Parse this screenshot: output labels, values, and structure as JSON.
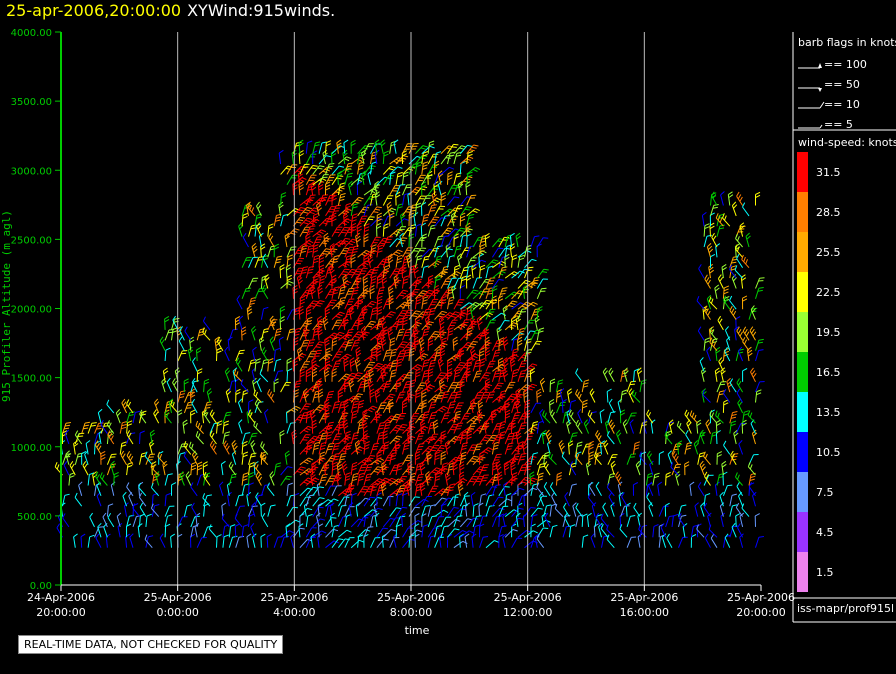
{
  "title": {
    "date": "25-apr-2006,20:00:00",
    "name": "XYWind:915winds."
  },
  "footer_note": "REAL-TIME DATA, NOT CHECKED FOR QUALITY",
  "source_label": "iss-mapr/prof915l",
  "colors": {
    "axis": "#00cc00",
    "grid": "#bbbbbb",
    "title_date": "#ffff00",
    "scale": [
      "#ee82ee",
      "#9933ff",
      "#6699ff",
      "#0000ff",
      "#00ffff",
      "#00cc00",
      "#99ff33",
      "#ffff00",
      "#ffaa00",
      "#ff7f00",
      "#ff0000"
    ]
  },
  "legend": {
    "barb_title": "barb flags in knots",
    "barb_entries": [
      "== 100",
      "== 50",
      "== 10",
      "== 5"
    ],
    "speed_title": "wind-speed: knots",
    "speed_levels": [
      "31.5",
      "28.5",
      "25.5",
      "22.5",
      "19.5",
      "16.5",
      "13.5",
      "10.5",
      "7.5",
      "4.5",
      "1.5"
    ]
  },
  "chart_data": {
    "type": "wind-barb time-height",
    "xlabel": "time",
    "ylabel": "915 Profiler Altitude (m agl)",
    "x_ticks": [
      {
        "date": "24-Apr-2006",
        "time": "20:00:00",
        "hours": 0
      },
      {
        "date": "25-Apr-2006",
        "time": "0:00:00",
        "hours": 4
      },
      {
        "date": "25-Apr-2006",
        "time": "4:00:00",
        "hours": 8
      },
      {
        "date": "25-Apr-2006",
        "time": "8:00:00",
        "hours": 12
      },
      {
        "date": "25-Apr-2006",
        "time": "12:00:00",
        "hours": 16
      },
      {
        "date": "25-Apr-2006",
        "time": "16:00:00",
        "hours": 20
      },
      {
        "date": "25-Apr-2006",
        "time": "20:00:00",
        "hours": 24
      }
    ],
    "y_ticks": [
      "0.00",
      "500.00",
      "1000.00",
      "1500.00",
      "2000.00",
      "2500.00",
      "3000.00",
      "3500.00",
      "4000.00"
    ],
    "ylim": [
      0,
      4000
    ],
    "xlim_hours": [
      0,
      24
    ],
    "grid": "vertical lines at tick times",
    "speed_range_knots": [
      0,
      33
    ]
  }
}
